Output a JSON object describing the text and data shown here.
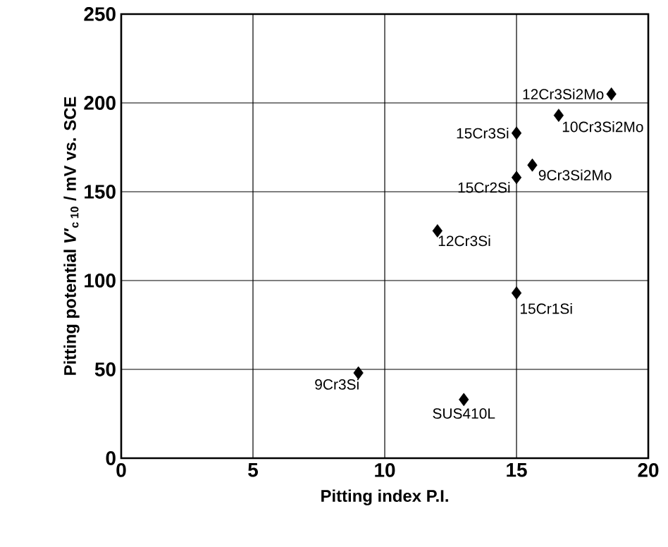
{
  "chart_data": {
    "type": "scatter",
    "xlabel": "Pitting index  P.I.",
    "ylabel": "Pitting potential *V′*$_{c 10}$ / mV vs. SCE",
    "xlim": [
      0,
      20
    ],
    "xticks": [
      0,
      5,
      10,
      15,
      20
    ],
    "ylim": [
      0,
      250
    ],
    "yticks": [
      0,
      50,
      100,
      150,
      200,
      250
    ],
    "grid": true,
    "marker": "diamond",
    "series": [
      {
        "color": "#000000",
        "x": [
          18.6,
          16.6,
          15,
          15.6,
          15,
          12,
          15,
          9,
          13
        ],
        "values": [
          205,
          193,
          183,
          165,
          158,
          128,
          93,
          48,
          33
        ]
      }
    ],
    "annotations": [
      {
        "text": "12Cr3Si2Mo",
        "x": 18.6,
        "y": 205
      },
      {
        "text": "10Cr3Si2Mo",
        "x": 16.6,
        "y": 193
      },
      {
        "text": "15Cr3Si",
        "x": 15,
        "y": 183
      },
      {
        "text": "9Cr3Si2Mo",
        "x": 15.6,
        "y": 165
      },
      {
        "text": "15Cr2Si",
        "x": 15,
        "y": 158
      },
      {
        "text": "12Cr3Si",
        "x": 12,
        "y": 128
      },
      {
        "text": "15Cr1Si",
        "x": 15,
        "y": 93
      },
      {
        "text": "9Cr3Si",
        "x": 9,
        "y": 48
      },
      {
        "text": "SUS410L",
        "x": 13,
        "y": 33
      }
    ]
  }
}
